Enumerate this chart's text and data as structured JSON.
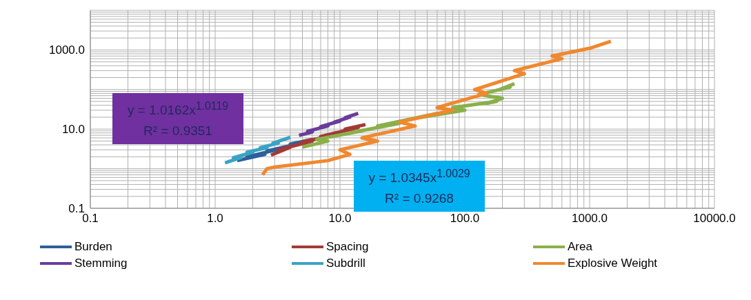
{
  "chart_data": {
    "type": "line",
    "marker": "none",
    "log": "xy",
    "grid": true,
    "legend": "bottom",
    "xlim": [
      0.1,
      10000
    ],
    "ylim": [
      0.1,
      10000
    ],
    "xticks": [
      {
        "value": 0.1,
        "label": "0.1"
      },
      {
        "value": 0.2,
        "label": null
      },
      {
        "value": 0.3,
        "label": null
      },
      {
        "value": 0.4,
        "label": null
      },
      {
        "value": 0.5,
        "label": null
      },
      {
        "value": 0.6,
        "label": null
      },
      {
        "value": 0.7,
        "label": null
      },
      {
        "value": 0.8,
        "label": null
      },
      {
        "value": 0.9,
        "label": null
      },
      {
        "value": 1,
        "label": "1.0"
      },
      {
        "value": 2,
        "label": null
      },
      {
        "value": 3,
        "label": null
      },
      {
        "value": 4,
        "label": null
      },
      {
        "value": 5,
        "label": null
      },
      {
        "value": 6,
        "label": null
      },
      {
        "value": 7,
        "label": null
      },
      {
        "value": 8,
        "label": null
      },
      {
        "value": 9,
        "label": null
      },
      {
        "value": 10,
        "label": "10.0"
      },
      {
        "value": 20,
        "label": null
      },
      {
        "value": 30,
        "label": null
      },
      {
        "value": 40,
        "label": null
      },
      {
        "value": 50,
        "label": null
      },
      {
        "value": 60,
        "label": null
      },
      {
        "value": 70,
        "label": null
      },
      {
        "value": 80,
        "label": null
      },
      {
        "value": 90,
        "label": null
      },
      {
        "value": 100,
        "label": "100.0"
      },
      {
        "value": 200,
        "label": null
      },
      {
        "value": 300,
        "label": null
      },
      {
        "value": 400,
        "label": null
      },
      {
        "value": 500,
        "label": null
      },
      {
        "value": 600,
        "label": null
      },
      {
        "value": 700,
        "label": null
      },
      {
        "value": 800,
        "label": null
      },
      {
        "value": 900,
        "label": null
      },
      {
        "value": 1000,
        "label": "1000.0"
      },
      {
        "value": 2000,
        "label": null
      },
      {
        "value": 3000,
        "label": null
      },
      {
        "value": 4000,
        "label": null
      },
      {
        "value": 5000,
        "label": null
      },
      {
        "value": 6000,
        "label": null
      },
      {
        "value": 7000,
        "label": null
      },
      {
        "value": 8000,
        "label": null
      },
      {
        "value": 9000,
        "label": null
      },
      {
        "value": 10000,
        "label": "10000.0"
      }
    ],
    "yticks": [
      {
        "value": 0.1,
        "label": "0.1"
      },
      {
        "value": 0.2,
        "label": null
      },
      {
        "value": 0.3,
        "label": null
      },
      {
        "value": 0.4,
        "label": null
      },
      {
        "value": 0.5,
        "label": null
      },
      {
        "value": 0.6,
        "label": null
      },
      {
        "value": 0.7,
        "label": null
      },
      {
        "value": 0.8,
        "label": null
      },
      {
        "value": 0.9,
        "label": null
      },
      {
        "value": 1,
        "label": null
      },
      {
        "value": 2,
        "label": null
      },
      {
        "value": 3,
        "label": null
      },
      {
        "value": 4,
        "label": null
      },
      {
        "value": 5,
        "label": null
      },
      {
        "value": 6,
        "label": null
      },
      {
        "value": 7,
        "label": null
      },
      {
        "value": 8,
        "label": null
      },
      {
        "value": 9,
        "label": null
      },
      {
        "value": 10,
        "label": "10.0"
      },
      {
        "value": 20,
        "label": null
      },
      {
        "value": 30,
        "label": null
      },
      {
        "value": 40,
        "label": null
      },
      {
        "value": 50,
        "label": null
      },
      {
        "value": 60,
        "label": null
      },
      {
        "value": 70,
        "label": null
      },
      {
        "value": 80,
        "label": null
      },
      {
        "value": 90,
        "label": null
      },
      {
        "value": 100,
        "label": null
      },
      {
        "value": 200,
        "label": null
      },
      {
        "value": 300,
        "label": null
      },
      {
        "value": 400,
        "label": null
      },
      {
        "value": 500,
        "label": null
      },
      {
        "value": 600,
        "label": null
      },
      {
        "value": 700,
        "label": null
      },
      {
        "value": 800,
        "label": null
      },
      {
        "value": 900,
        "label": null
      },
      {
        "value": 1000,
        "label": "1000.0"
      },
      {
        "value": 2000,
        "label": null
      },
      {
        "value": 3000,
        "label": null
      },
      {
        "value": 4000,
        "label": null
      },
      {
        "value": 5000,
        "label": null
      },
      {
        "value": 6000,
        "label": null
      },
      {
        "value": 7000,
        "label": null
      },
      {
        "value": 8000,
        "label": null
      },
      {
        "value": 9000,
        "label": null
      },
      {
        "value": 10000,
        "label": null
      }
    ],
    "series": [
      {
        "name": "Burden",
        "color": "#2e5f9a",
        "x": [
          1.5,
          2.5,
          1.8,
          3.5,
          2.6,
          5,
          4,
          6
        ],
        "values": [
          1.6,
          2.3,
          2.0,
          3.3,
          2.8,
          4.5,
          4.2,
          5.5
        ]
      },
      {
        "name": "Spacing",
        "color": "#a33a36",
        "x": [
          2.8,
          4,
          3.2,
          6,
          5,
          9,
          7,
          14,
          11,
          16
        ],
        "values": [
          2.2,
          3.5,
          3.0,
          5,
          4.8,
          7,
          6.5,
          11,
          10,
          13
        ]
      },
      {
        "name": "Area",
        "color": "#8ab04a",
        "x": [
          5,
          8,
          6.5,
          15,
          12,
          30,
          20,
          60,
          45,
          100,
          80,
          180,
          150,
          200,
          130,
          230,
          190,
          250
        ],
        "values": [
          3.5,
          5,
          5.5,
          9,
          8,
          14,
          12,
          25,
          20,
          30,
          35,
          50,
          45,
          60,
          75,
          115,
          100,
          140
        ]
      },
      {
        "name": "Stemming",
        "color": "#6a3d9a",
        "x": [
          4.7,
          6,
          5.5,
          8,
          7,
          10,
          9,
          12,
          11,
          14
        ],
        "values": [
          6.9,
          8.5,
          8.8,
          12,
          11.5,
          16,
          15,
          20,
          19.5,
          25
        ]
      },
      {
        "name": "Subdrill",
        "color": "#3aa4c4",
        "x": [
          1.2,
          1.6,
          1.4,
          2,
          1.8,
          2.6,
          2.3,
          3.2,
          2.9,
          4
        ],
        "values": [
          1.4,
          1.9,
          1.9,
          2.6,
          2.6,
          3.4,
          3.4,
          4.4,
          4.4,
          6.2
        ]
      },
      {
        "name": "Explosive Weight",
        "color": "#f0882e",
        "x": [
          2.4,
          2.6,
          3,
          8,
          12,
          10,
          20,
          15,
          40,
          30,
          80,
          60,
          150,
          120,
          300,
          250,
          600,
          500,
          1000,
          1480
        ],
        "values": [
          0.7,
          1.0,
          1.1,
          1.6,
          2.3,
          3,
          5,
          6,
          12,
          15,
          30,
          35,
          80,
          100,
          250,
          300,
          600,
          700,
          1100,
          1660
        ]
      }
    ],
    "annotations": [
      "y = 1.0162x$^{1.0119}$",
      "R² = 0.9351",
      "y = 1.0345x$^{1.0029}$",
      "R² = 0.9268"
    ]
  }
}
